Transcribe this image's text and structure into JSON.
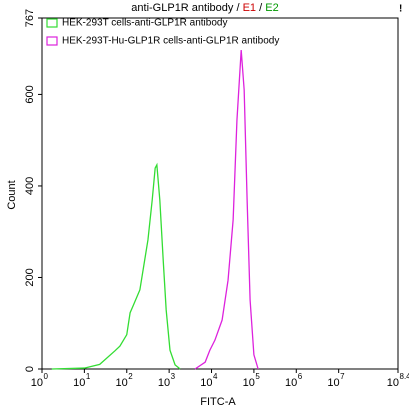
{
  "chart_data": {
    "type": "line",
    "title_parts": [
      {
        "text": "anti-GLP1R antibody",
        "color": "#000000"
      },
      {
        "text": "/",
        "color": "#000000"
      },
      {
        "text": "E1",
        "color": "#cc0000"
      },
      {
        "text": "/",
        "color": "#000000"
      },
      {
        "text": "E2",
        "color": "#009900"
      }
    ],
    "flag": "!",
    "xlabel": "FITC-A",
    "ylabel": "Count",
    "xscale": "log",
    "xlim": [
      1,
      251188643
    ],
    "xticks": [
      {
        "value": 1,
        "label": "10",
        "exponent": "0"
      },
      {
        "value": 10,
        "label": "10",
        "exponent": "1"
      },
      {
        "value": 100,
        "label": "10",
        "exponent": "2"
      },
      {
        "value": 1000,
        "label": "10",
        "exponent": "3"
      },
      {
        "value": 10000,
        "label": "10",
        "exponent": "4"
      },
      {
        "value": 100000,
        "label": "10",
        "exponent": "5"
      },
      {
        "value": 1000000,
        "label": "10",
        "exponent": "6"
      },
      {
        "value": 10000000,
        "label": "10",
        "exponent": "7"
      },
      {
        "value": 251188643,
        "label": "10",
        "exponent": "8.4"
      }
    ],
    "ylim": [
      0,
      767
    ],
    "yticks": [
      0,
      200,
      400,
      600,
      767
    ],
    "legend": "upper left",
    "series": [
      {
        "name": "HEK-293T cells-anti-GLP1R antibody",
        "color": "#33dd33",
        "x": [
          1.7,
          10,
          23,
          53,
          69,
          100,
          120,
          141,
          204,
          316,
          398,
          468,
          513,
          603,
          724,
          851,
          1047,
          1380,
          1820
        ],
        "values": [
          0,
          2,
          10,
          40,
          50,
          75,
          123,
          138,
          173,
          282,
          369,
          439,
          446,
          369,
          238,
          129,
          41,
          9,
          0
        ]
      },
      {
        "name": "HEK-293T-Hu-GLP1R cells-anti-GLP1R antibody",
        "color": "#dd22dd",
        "x": [
          4074,
          7079,
          9120,
          12023,
          17783,
          24547,
          32359,
          39811,
          50119,
          58884,
          69183,
          81283,
          100000,
          125893
        ],
        "values": [
          0,
          15,
          41,
          63,
          107,
          194,
          326,
          544,
          697,
          610,
          369,
          151,
          31,
          0
        ]
      }
    ]
  }
}
